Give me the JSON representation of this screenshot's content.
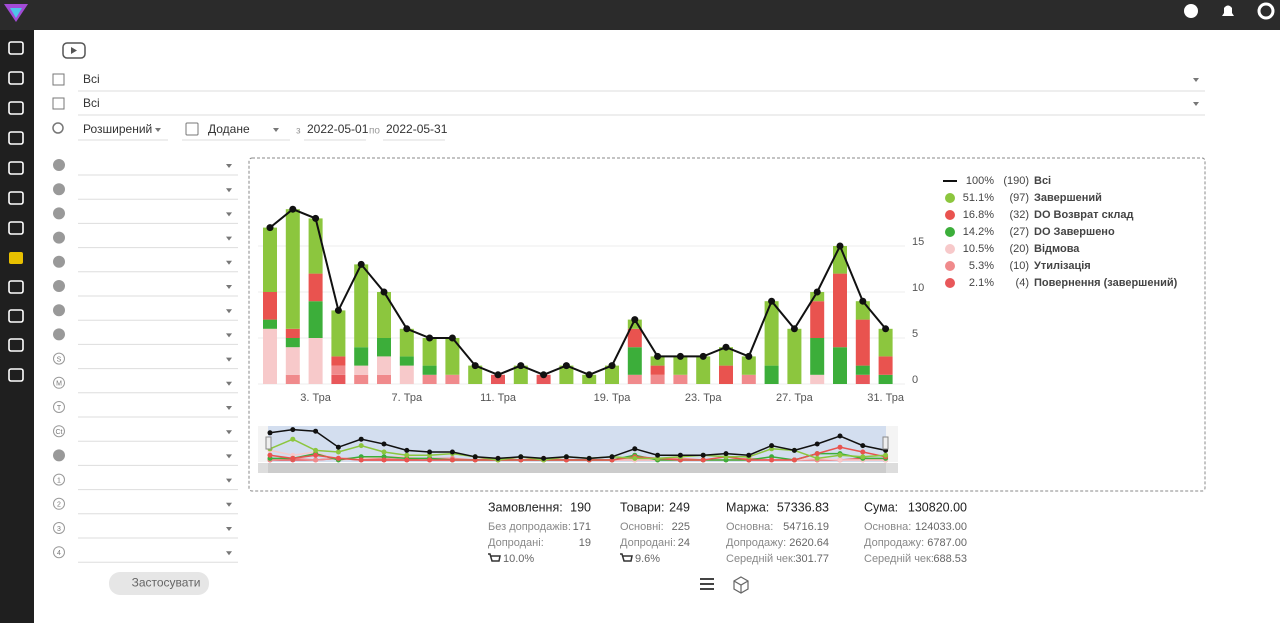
{
  "top_filters": {
    "category": "Всі",
    "product": "Всі",
    "search_mode": "Розширений",
    "date_type": "Додане",
    "from_label": "з",
    "date_from": "2022-05-01",
    "to_label": "по",
    "date_to": "2022-05-31"
  },
  "filter_labels": [
    null,
    null,
    null,
    null,
    null,
    null,
    null,
    null,
    "S",
    "M",
    "T",
    "Ct",
    null,
    "1",
    "2",
    "3",
    "4"
  ],
  "apply_button": "Застосувати",
  "chart_data": {
    "type": "bar",
    "categories": [
      null,
      null,
      "3. Тра",
      null,
      null,
      null,
      "7. Тра",
      null,
      null,
      null,
      "11. Тра",
      null,
      null,
      null,
      null,
      "19. Тра",
      null,
      null,
      null,
      "23. Тра",
      null,
      null,
      null,
      "27. Тра",
      null,
      null,
      null,
      "31. Тра"
    ],
    "series": [
      {
        "name": "Завершений",
        "color": "#8cc63e",
        "legend_percent": "51.1%",
        "legend_count": "(97)",
        "values": [
          7,
          13,
          6,
          5,
          9,
          5,
          3,
          3,
          4,
          2,
          0,
          2,
          0,
          2,
          1,
          2,
          1,
          1,
          2,
          3,
          2,
          2,
          7,
          6,
          1,
          3,
          2,
          3
        ]
      },
      {
        "name": "DO Возврат склад",
        "color": "#e9534f",
        "legend_percent": "16.8%",
        "legend_count": "(32)",
        "values": [
          3,
          1,
          3,
          1,
          0,
          0,
          0,
          0,
          0,
          0,
          0,
          0,
          0,
          0,
          0,
          0,
          2,
          1,
          0,
          0,
          2,
          0,
          0,
          0,
          4,
          8,
          5,
          2
        ]
      },
      {
        "name": "DO Завершено",
        "color": "#3cae3a",
        "legend_percent": "14.2%",
        "legend_count": "(27)",
        "values": [
          1,
          1,
          4,
          0,
          2,
          2,
          1,
          1,
          0,
          0,
          0,
          0,
          0,
          0,
          0,
          0,
          3,
          0,
          0,
          0,
          0,
          0,
          2,
          0,
          4,
          4,
          1,
          1
        ]
      },
      {
        "name": "Відмова",
        "color": "#f7c9ca",
        "legend_percent": "10.5%",
        "legend_count": "(20)",
        "values": [
          6,
          3,
          5,
          0,
          1,
          2,
          2,
          0,
          0,
          0,
          0,
          0,
          0,
          0,
          0,
          0,
          0,
          0,
          0,
          0,
          0,
          0,
          0,
          0,
          1,
          0,
          0,
          0
        ]
      },
      {
        "name": "Утилізація",
        "color": "#f08a8c",
        "legend_percent": "5.3%",
        "legend_count": "(10)",
        "values": [
          0,
          1,
          0,
          1,
          1,
          1,
          0,
          1,
          1,
          0,
          0,
          0,
          0,
          0,
          0,
          0,
          1,
          1,
          1,
          0,
          0,
          1,
          0,
          0,
          0,
          0,
          0,
          0
        ]
      },
      {
        "name": "Повернення (завершений)",
        "color": "#e8575a",
        "legend_percent": "2.1%",
        "legend_count": "(4)",
        "values": [
          0,
          0,
          0,
          1,
          0,
          0,
          0,
          0,
          0,
          0,
          1,
          0,
          1,
          0,
          0,
          0,
          0,
          0,
          0,
          0,
          0,
          0,
          0,
          0,
          0,
          0,
          1,
          0
        ]
      }
    ],
    "total": {
      "name": "Всі",
      "type": "line",
      "color": "#111111",
      "legend_percent": "100%",
      "legend_count": "(190)",
      "values": [
        17,
        19,
        18,
        8,
        13,
        10,
        6,
        5,
        5,
        2,
        1,
        2,
        1,
        2,
        1,
        2,
        7,
        3,
        3,
        3,
        4,
        3,
        9,
        6,
        10,
        15,
        9,
        6
      ]
    },
    "ylim": [
      0,
      20
    ],
    "yticks": [
      0,
      5,
      10,
      15
    ],
    "grid": true
  },
  "stats": [
    {
      "title": "Замовлення:",
      "value": "190",
      "rows": [
        {
          "label": "Без допродажів:",
          "value": "171"
        },
        {
          "label": "Допродані:",
          "value": "19"
        },
        {
          "value": "10.0%"
        }
      ]
    },
    {
      "title": "Товари:",
      "value": "249",
      "rows": [
        {
          "label": "Основні:",
          "value": "225"
        },
        {
          "label": "Допродані:",
          "value": "24"
        },
        {
          "value": "9.6%"
        }
      ]
    },
    {
      "title": "Маржа:",
      "value": "57336.83",
      "rows": [
        {
          "label": "Основна:",
          "value": "54716.19"
        },
        {
          "label": "Допродажу:",
          "value": "2620.64"
        },
        {
          "label": "Середній чек:",
          "value": "301.77"
        }
      ]
    },
    {
      "title": "Сума:",
      "value": "130820.00",
      "rows": [
        {
          "label": "Основна:",
          "value": "124033.00"
        },
        {
          "label": "Допродажу:",
          "value": "6787.00"
        },
        {
          "label": "Середній чек:",
          "value": "688.53"
        }
      ]
    }
  ]
}
